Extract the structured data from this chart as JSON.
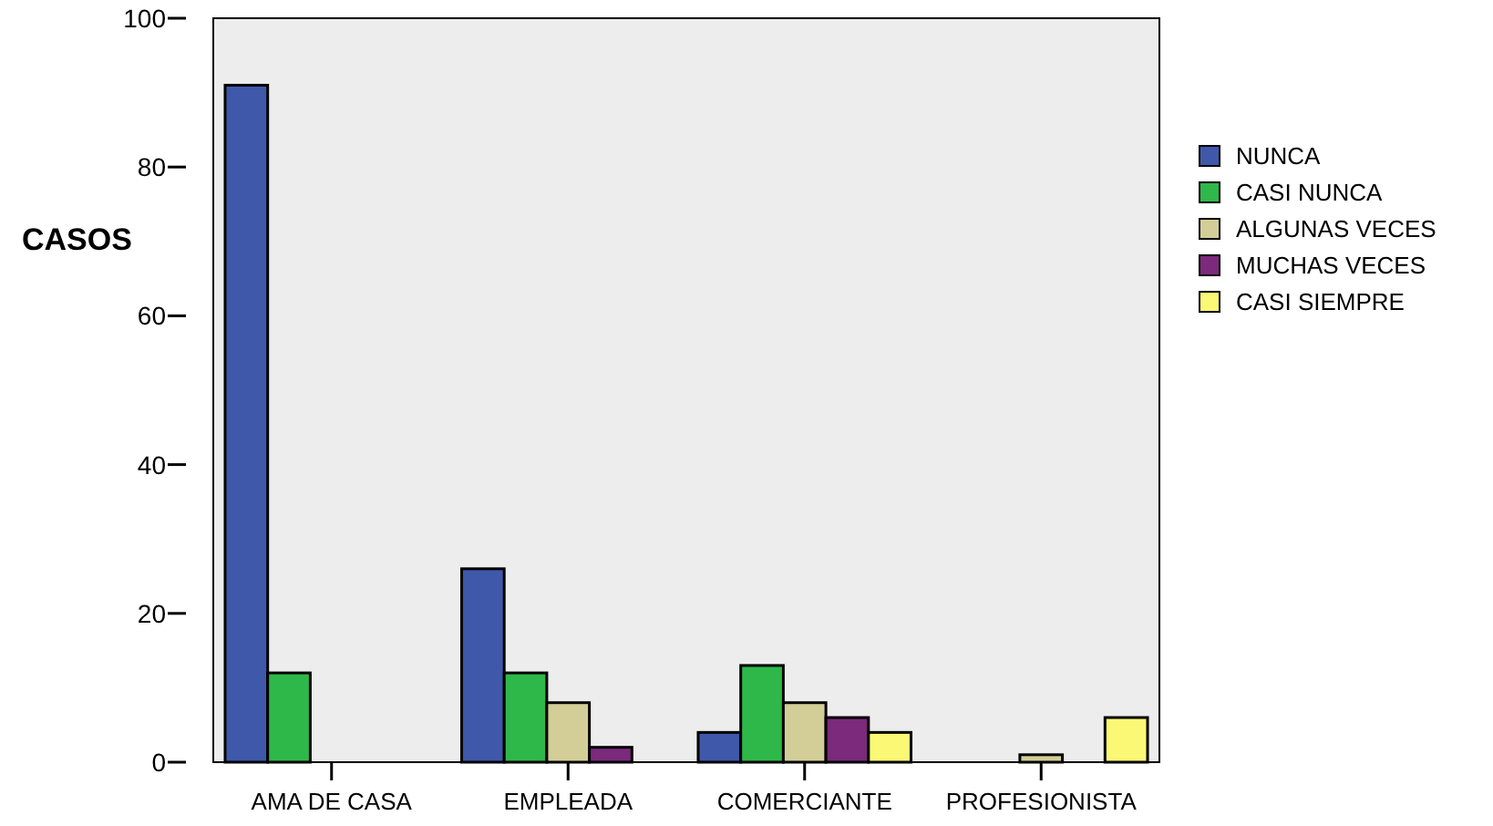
{
  "chart_data": {
    "type": "bar",
    "ylabel": "CASOS",
    "categories": [
      "AMA DE CASA",
      "EMPLEADA",
      "COMERCIANTE",
      "PROFESIONISTA"
    ],
    "series": [
      {
        "name": "NUNCA",
        "color": "#3f58aa",
        "values": [
          91,
          26,
          4,
          null
        ]
      },
      {
        "name": "CASI NUNCA",
        "color": "#2fb84a",
        "values": [
          12,
          12,
          13,
          null
        ]
      },
      {
        "name": "ALGUNAS VECES",
        "color": "#d3ce98",
        "values": [
          null,
          8,
          8,
          1
        ]
      },
      {
        "name": "MUCHAS VECES",
        "color": "#7b2a7c",
        "values": [
          null,
          2,
          6,
          null
        ]
      },
      {
        "name": "CASI SIEMPRE",
        "color": "#fbf876",
        "values": [
          null,
          null,
          4,
          6
        ]
      }
    ],
    "ylim": [
      0,
      100
    ],
    "yticks": [
      0,
      20,
      40,
      60,
      80,
      100
    ],
    "grid": false,
    "legend": "right"
  }
}
